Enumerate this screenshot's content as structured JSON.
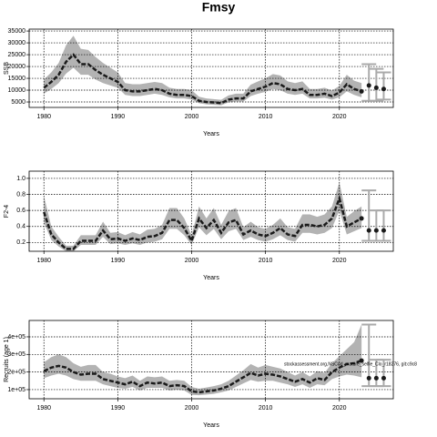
{
  "title": "Fmsy",
  "chart_data": [
    {
      "type": "line",
      "ylabel": "SSB",
      "xlabel": "Years",
      "color": "#1a1a1a",
      "band_color": "#b3b3b3",
      "grid": true,
      "xlim": [
        1978,
        2027.3
      ],
      "xticks": [
        1980,
        1990,
        2000,
        2010,
        2020
      ],
      "ylim": [
        2700,
        35800
      ],
      "yticks": [
        5000,
        10000,
        15000,
        20000,
        25000,
        30000,
        35000
      ],
      "x": [
        1980,
        1981,
        1982,
        1983,
        1984,
        1985,
        1986,
        1987,
        1988,
        1989,
        1990,
        1991,
        1992,
        1993,
        1994,
        1995,
        1996,
        1997,
        1998,
        1999,
        2000,
        2001,
        2002,
        2003,
        2004,
        2005,
        2006,
        2007,
        2008,
        2009,
        2010,
        2011,
        2012,
        2013,
        2014,
        2015,
        2016,
        2017,
        2018,
        2019,
        2020,
        2021,
        2022,
        2023
      ],
      "values": [
        11000,
        13500,
        16500,
        22000,
        25000,
        21000,
        21000,
        18500,
        16500,
        15000,
        13500,
        10000,
        9500,
        9500,
        10000,
        10500,
        10000,
        8500,
        8000,
        8000,
        7500,
        5500,
        5000,
        4800,
        4500,
        6000,
        6500,
        6500,
        9500,
        10500,
        11500,
        13000,
        12500,
        10500,
        10000,
        10500,
        8000,
        8000,
        8500,
        7500,
        9000,
        12500,
        10500,
        9500
      ],
      "lower": [
        8500,
        10500,
        13000,
        17000,
        19500,
        16500,
        16500,
        14500,
        13000,
        12000,
        11000,
        8000,
        7500,
        7500,
        8000,
        8500,
        8000,
        7000,
        6500,
        6500,
        6000,
        4500,
        4000,
        3800,
        3600,
        4800,
        5200,
        5200,
        7500,
        8500,
        9300,
        10500,
        10000,
        8500,
        8000,
        8500,
        6500,
        6500,
        6800,
        6000,
        7000,
        9500,
        8000,
        7000
      ],
      "upper": [
        14500,
        17500,
        21500,
        29000,
        33000,
        27500,
        27000,
        24000,
        21500,
        19500,
        17500,
        13000,
        12500,
        12500,
        13000,
        13500,
        13000,
        11000,
        10500,
        10500,
        10000,
        7200,
        6500,
        6200,
        5900,
        7800,
        8500,
        8500,
        12300,
        13700,
        15000,
        16800,
        16200,
        13700,
        13000,
        13700,
        10500,
        10500,
        11000,
        9800,
        11800,
        16500,
        14000,
        13000
      ],
      "forecast_x": [
        2024,
        2025,
        2026
      ],
      "forecast": [
        12000,
        11000,
        10500
      ],
      "forecast_lower": [
        5500,
        5500,
        6000
      ],
      "forecast_upper": [
        21000,
        19000,
        17500
      ]
    },
    {
      "type": "line",
      "ylabel": "F2-4",
      "xlabel": "Years",
      "color": "#1a1a1a",
      "band_color": "#b3b3b3",
      "grid": true,
      "xlim": [
        1978,
        2027.3
      ],
      "xticks": [
        1980,
        1990,
        2000,
        2010,
        2020
      ],
      "ylim": [
        0.09,
        1.09
      ],
      "yticks": [
        0.2,
        0.4,
        0.6,
        0.8,
        {
          "value": 1,
          "label": "1.0"
        }
      ],
      "x": [
        1980,
        1981,
        1982,
        1983,
        1984,
        1985,
        1986,
        1987,
        1988,
        1989,
        1990,
        1991,
        1992,
        1993,
        1994,
        1995,
        1996,
        1997,
        1998,
        1999,
        2000,
        2001,
        2002,
        2003,
        2004,
        2005,
        2006,
        2007,
        2008,
        2009,
        2010,
        2011,
        2012,
        2013,
        2014,
        2015,
        2016,
        2017,
        2018,
        2019,
        2020,
        2021,
        2022,
        2023
      ],
      "values": [
        0.58,
        0.3,
        0.2,
        0.12,
        0.12,
        0.22,
        0.22,
        0.22,
        0.35,
        0.24,
        0.25,
        0.22,
        0.25,
        0.23,
        0.27,
        0.28,
        0.32,
        0.48,
        0.48,
        0.38,
        0.22,
        0.5,
        0.38,
        0.48,
        0.32,
        0.45,
        0.48,
        0.3,
        0.35,
        0.3,
        0.28,
        0.32,
        0.38,
        0.3,
        0.28,
        0.42,
        0.42,
        0.4,
        0.42,
        0.5,
        0.75,
        0.4,
        0.45,
        0.5
      ],
      "lower": [
        0.45,
        0.23,
        0.15,
        0.09,
        0.09,
        0.17,
        0.17,
        0.17,
        0.27,
        0.18,
        0.19,
        0.17,
        0.19,
        0.17,
        0.2,
        0.21,
        0.24,
        0.37,
        0.37,
        0.29,
        0.17,
        0.39,
        0.29,
        0.37,
        0.24,
        0.34,
        0.37,
        0.23,
        0.27,
        0.23,
        0.21,
        0.24,
        0.29,
        0.23,
        0.21,
        0.32,
        0.32,
        0.3,
        0.32,
        0.38,
        0.6,
        0.3,
        0.34,
        0.38
      ],
      "upper": [
        0.78,
        0.4,
        0.27,
        0.16,
        0.16,
        0.29,
        0.29,
        0.29,
        0.46,
        0.32,
        0.33,
        0.29,
        0.33,
        0.3,
        0.36,
        0.37,
        0.42,
        0.63,
        0.63,
        0.5,
        0.29,
        0.65,
        0.5,
        0.63,
        0.42,
        0.59,
        0.63,
        0.39,
        0.46,
        0.39,
        0.37,
        0.42,
        0.5,
        0.39,
        0.37,
        0.55,
        0.55,
        0.52,
        0.55,
        0.65,
        0.95,
        0.52,
        0.59,
        0.65
      ],
      "forecast_x": [
        2024,
        2025,
        2026
      ],
      "forecast": [
        0.35,
        0.35,
        0.35
      ],
      "forecast_lower": [
        0.22,
        0.22,
        0.22
      ],
      "forecast_upper": [
        0.85,
        0.6,
        0.6
      ]
    },
    {
      "type": "line",
      "ylabel": "Recruits (age 1)",
      "xlabel": "Years",
      "color": "#1a1a1a",
      "band_color": "#b3b3b3",
      "grid": true,
      "annotation": "stockassessment.org,NSCod_mature_selfie_Clo_r18276, git:c9c8",
      "xlim": [
        1978,
        2027.3
      ],
      "xticks": [
        1980,
        1990,
        2000,
        2010,
        2020
      ],
      "ylim": [
        48000,
        493000
      ],
      "yticks": [
        {
          "value": 100000,
          "label": "1e+05"
        },
        {
          "value": 200000,
          "label": "2e+05"
        },
        {
          "value": 300000,
          "label": "3e+05"
        },
        {
          "value": 400000,
          "label": "4e+05"
        }
      ],
      "x": [
        1980,
        1981,
        1982,
        1983,
        1984,
        1985,
        1986,
        1987,
        1988,
        1989,
        1990,
        1991,
        1992,
        1993,
        1994,
        1995,
        1996,
        1997,
        1998,
        1999,
        2000,
        2001,
        2002,
        2003,
        2004,
        2005,
        2006,
        2007,
        2008,
        2009,
        2010,
        2011,
        2012,
        2013,
        2014,
        2015,
        2016,
        2017,
        2018,
        2019,
        2020,
        2021,
        2022,
        2023
      ],
      "values": [
        205000,
        225000,
        235000,
        225000,
        200000,
        185000,
        190000,
        190000,
        160000,
        150000,
        140000,
        130000,
        145000,
        120000,
        140000,
        135000,
        140000,
        120000,
        125000,
        120000,
        90000,
        85000,
        90000,
        95000,
        105000,
        120000,
        145000,
        170000,
        195000,
        180000,
        190000,
        185000,
        175000,
        160000,
        145000,
        160000,
        140000,
        165000,
        155000,
        200000,
        225000,
        245000,
        250000,
        265000
      ],
      "lower": [
        165000,
        180000,
        190000,
        180000,
        160000,
        150000,
        150000,
        150000,
        130000,
        120000,
        110000,
        105000,
        115000,
        95000,
        110000,
        110000,
        110000,
        95000,
        100000,
        95000,
        70000,
        68000,
        72000,
        76000,
        85000,
        95000,
        115000,
        135000,
        155000,
        145000,
        150000,
        150000,
        140000,
        130000,
        115000,
        130000,
        110000,
        130000,
        125000,
        160000,
        175000,
        185000,
        180000,
        170000
      ],
      "upper": [
        255000,
        285000,
        300000,
        285000,
        250000,
        230000,
        240000,
        240000,
        200000,
        190000,
        175000,
        165000,
        180000,
        150000,
        175000,
        170000,
        175000,
        150000,
        155000,
        150000,
        115000,
        105000,
        112000,
        120000,
        130000,
        150000,
        180000,
        210000,
        245000,
        225000,
        240000,
        230000,
        220000,
        200000,
        180000,
        200000,
        175000,
        205000,
        195000,
        250000,
        290000,
        330000,
        370000,
        470000
      ],
      "forecast_x": [
        2024,
        2025,
        2026
      ],
      "forecast": [
        165000,
        165000,
        165000
      ],
      "forecast_lower": [
        120000,
        120000,
        120000
      ],
      "forecast_upper": [
        470000,
        270000,
        270000
      ]
    }
  ]
}
